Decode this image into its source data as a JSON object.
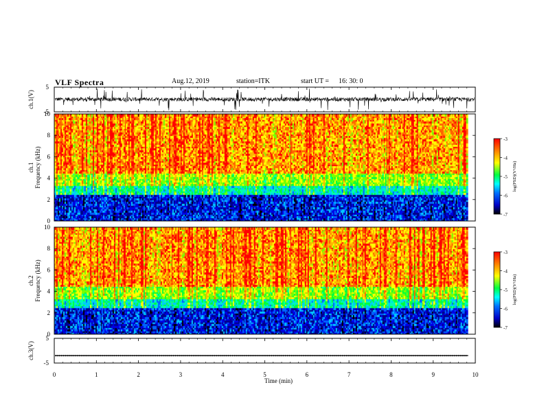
{
  "header": {
    "title": "VLF Spectra",
    "date": "Aug.12, 2019",
    "station": "station=ITK",
    "start_label": "start  UT =",
    "start_time": "16: 30: 0"
  },
  "chart_data": [
    {
      "type": "line",
      "panel": "ch1-waveform",
      "ylabel": "ch.1(V)",
      "ylim": [
        -5,
        5
      ],
      "yticks": [
        "5",
        "-5"
      ],
      "xlim": [
        0,
        10
      ],
      "description_values": "noisy waveform, mostly between -1 and 1 V with spikes to about +/-5 V"
    },
    {
      "type": "heatmap",
      "panel": "ch1-spectrogram",
      "ylabel_line1": "ch.1",
      "ylabel_line2": "Frequency  (kHz)",
      "ylim": [
        0,
        10
      ],
      "yticks": [
        "0",
        "2",
        "4",
        "6",
        "8",
        "10"
      ],
      "xlim": [
        0,
        10
      ],
      "data_end_min": 9.83,
      "colorbar": {
        "label": "log(PSD)(V²/Hz)",
        "range": [
          -7,
          -3
        ],
        "ticks": [
          "-3",
          "-4",
          "-5",
          "-6",
          "-7"
        ]
      }
    },
    {
      "type": "heatmap",
      "panel": "ch2-spectrogram",
      "ylabel_line1": "ch.2",
      "ylabel_line2": "Frequency  (kHz)",
      "ylim": [
        0,
        10
      ],
      "yticks": [
        "0",
        "2",
        "4",
        "6",
        "8",
        "10"
      ],
      "xlim": [
        0,
        10
      ],
      "data_end_min": 9.83,
      "colorbar": {
        "label": "log(PSD)(V²/Hz)",
        "range": [
          -7,
          -3
        ],
        "ticks": [
          "-3",
          "-4",
          "-5",
          "-6",
          "-7"
        ]
      }
    },
    {
      "type": "line",
      "panel": "ch3-waveform",
      "ylabel": "ch.3(V)",
      "ylim": [
        -5,
        5
      ],
      "yticks": [
        "5",
        "-5"
      ],
      "xlim": [
        0,
        10
      ],
      "baseline_value": -2,
      "xlabel": "Time  (min)",
      "xticks": [
        "0",
        "1",
        "2",
        "3",
        "4",
        "5",
        "6",
        "7",
        "8",
        "9",
        "10"
      ]
    }
  ]
}
